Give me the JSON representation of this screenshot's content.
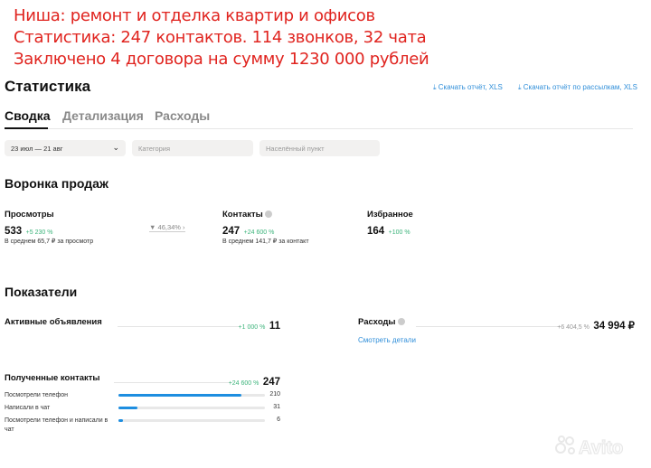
{
  "notes": [
    "Ниша: ремонт и отделка квартир и офисов",
    "Статистика: 247 контактов. 114 звонков, 32 чата",
    "Заключено 4 договора на сумму 1230 000 рублей"
  ],
  "header": {
    "title": "Статистика",
    "download_xls": "Скачать отчёт, XLS",
    "download_mailing_xls": "Скачать отчёт по рассылкам, XLS"
  },
  "tabs": [
    {
      "label": "Сводка",
      "active": true
    },
    {
      "label": "Детализация"
    },
    {
      "label": "Расходы"
    }
  ],
  "filters": {
    "date_range": "23 июл — 21 авг",
    "category_placeholder": "Категория",
    "city_placeholder": "Населённый пункт"
  },
  "funnel": {
    "title": "Воронка продаж",
    "views": {
      "label": "Просмотры",
      "value": "533",
      "change": "+5 230 %",
      "avg": "В среднем 65,7 ₽ за просмотр"
    },
    "conversion": "46,34%",
    "contacts": {
      "label": "Контакты",
      "value": "247",
      "change": "+24 600 %",
      "avg": "В среднем 141,7 ₽ за контакт"
    },
    "favorites": {
      "label": "Избранное",
      "value": "164",
      "change": "+100 %"
    }
  },
  "indicators": {
    "title": "Показатели",
    "active_ads": {
      "label": "Активные объявления",
      "change": "+1 000 %",
      "value": "11"
    },
    "expenses": {
      "label": "Расходы",
      "change": "+6 404,5 %",
      "value": "34 994 ₽",
      "details_link": "Смотреть детали"
    },
    "contacts": {
      "label": "Полученные контакты",
      "change": "+24 600 %",
      "value": "247",
      "rows": [
        {
          "label": "Посмотрели телефон",
          "value": "210",
          "fraction": 0.84
        },
        {
          "label": "Написали в чат",
          "value": "31",
          "fraction": 0.13
        },
        {
          "label": "Посмотрели телефон и написали в чат",
          "value": "6",
          "fraction": 0.03
        }
      ]
    }
  },
  "watermark": "Avito",
  "colors": {
    "note": "#e0241f",
    "link": "#2f8ed9",
    "positive": "#3bb37a",
    "bar": "#1e8ee0"
  }
}
